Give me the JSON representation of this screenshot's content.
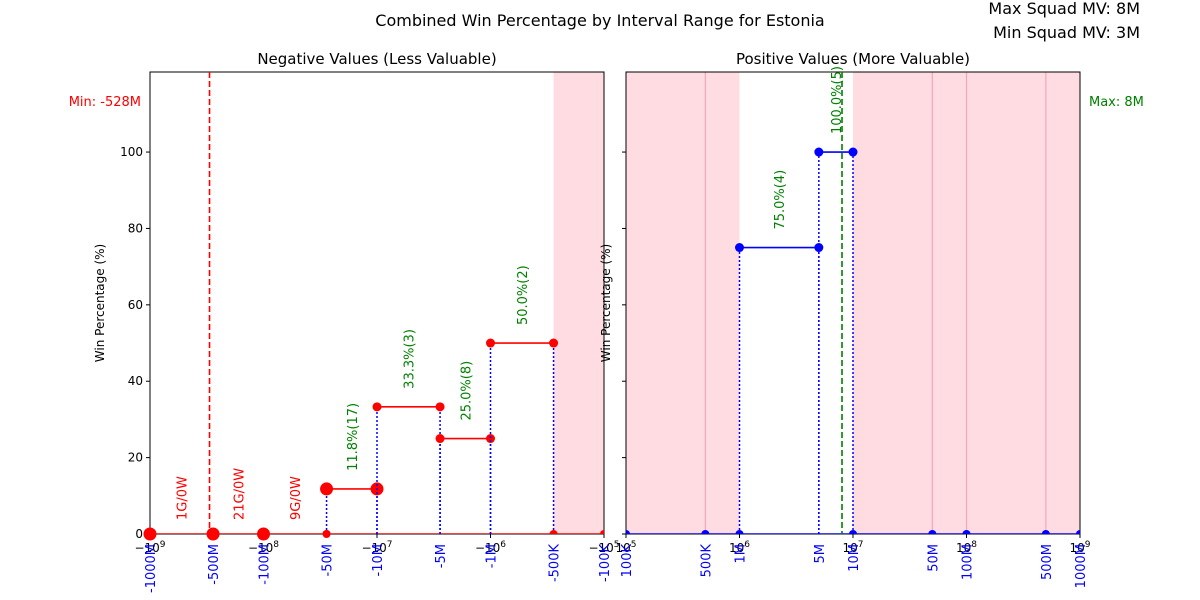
{
  "figure": {
    "title": "Combined Win Percentage by Interval Range for Estonia",
    "max_squad": "Max Squad MV: 8M",
    "min_squad": "Min Squad MV: 3M",
    "min_label": "Min: -528M",
    "max_label": "Max: 8M"
  },
  "colors": {
    "negative": "#ff0000",
    "positive": "#0000ff",
    "annotation": "#008000",
    "shade": "#ffc0cb",
    "shade_line": "#ffc0cb"
  },
  "chart_data": [
    {
      "type": "line",
      "title": "Negative Values (Less Valuable)",
      "ylabel": "Win Percentage (%)",
      "xscale": "symlog",
      "xlim": [
        -1000000000,
        -100000
      ],
      "ylim": [
        0,
        100
      ],
      "yticks": [
        0,
        20,
        40,
        60,
        80,
        100
      ],
      "xticks": [
        {
          "value": -1000000000,
          "label": "−10^9"
        },
        {
          "value": -100000000,
          "label": "−10^8"
        },
        {
          "value": -10000000,
          "label": "−10^7"
        },
        {
          "value": -1000000,
          "label": "−10^6"
        },
        {
          "value": -100000,
          "label": "−10^5"
        }
      ],
      "interval_ticks": [
        {
          "value": -1000000000,
          "label": "-1000M"
        },
        {
          "value": -500000000,
          "label": "-500M"
        },
        {
          "value": -100000000,
          "label": "-100M"
        },
        {
          "value": -50000000,
          "label": "-50M"
        },
        {
          "value": -10000000,
          "label": "-10M"
        },
        {
          "value": -5000000,
          "label": "-5M"
        },
        {
          "value": -1000000,
          "label": "-1M"
        },
        {
          "value": -500000,
          "label": "-500K"
        },
        {
          "value": -100000,
          "label": "-100K"
        }
      ],
      "min_line": -528000000,
      "shaded_ranges": [
        [
          -500000,
          -100000
        ]
      ],
      "segments": [
        {
          "from": -1000000000,
          "to": -500000000,
          "win_pct": 0,
          "label": "1G/0W",
          "label_color": "negative",
          "marker": "large"
        },
        {
          "from": -500000000,
          "to": -100000000,
          "win_pct": 0,
          "label": "21G/0W",
          "label_color": "negative",
          "marker": "large"
        },
        {
          "from": -100000000,
          "to": -50000000,
          "win_pct": 0,
          "label": "9G/0W",
          "label_color": "negative",
          "marker": "large"
        },
        {
          "from": -50000000,
          "to": -10000000,
          "win_pct": 11.8,
          "label": "11.8%(17)",
          "label_color": "annotation",
          "marker": "large"
        },
        {
          "from": -10000000,
          "to": -5000000,
          "win_pct": 33.3,
          "label": "33.3%(3)",
          "label_color": "annotation",
          "marker": "small"
        },
        {
          "from": -5000000,
          "to": -1000000,
          "win_pct": 25.0,
          "label": "25.0%(8)",
          "label_color": "annotation",
          "marker": "small"
        },
        {
          "from": -1000000,
          "to": -500000,
          "win_pct": 50.0,
          "label": "50.0%(2)",
          "label_color": "annotation",
          "marker": "small"
        }
      ],
      "zero_points": [
        -1000000000,
        -500000000,
        -100000000,
        -50000000,
        -500000,
        -100000
      ]
    },
    {
      "type": "line",
      "title": "Positive Values (More Valuable)",
      "ylabel": "Win Percentage (%)",
      "xscale": "log",
      "xlim": [
        100000,
        1000000000
      ],
      "ylim": [
        0,
        100
      ],
      "yticks": [
        0,
        20,
        40,
        60,
        80,
        100
      ],
      "xticks": [
        {
          "value": 100000,
          "label": "10^5"
        },
        {
          "value": 1000000,
          "label": "10^6"
        },
        {
          "value": 10000000,
          "label": "10^7"
        },
        {
          "value": 100000000,
          "label": "10^8"
        },
        {
          "value": 1000000000,
          "label": "10^9"
        }
      ],
      "interval_ticks": [
        {
          "value": 100000,
          "label": "100K"
        },
        {
          "value": 500000,
          "label": "500K"
        },
        {
          "value": 1000000,
          "label": "1M"
        },
        {
          "value": 5000000,
          "label": "5M"
        },
        {
          "value": 10000000,
          "label": "10M"
        },
        {
          "value": 50000000,
          "label": "50M"
        },
        {
          "value": 100000000,
          "label": "100M"
        },
        {
          "value": 500000000,
          "label": "500M"
        },
        {
          "value": 1000000000,
          "label": "1000M"
        }
      ],
      "max_line": 8000000,
      "shaded_ranges": [
        [
          100000,
          1000000
        ],
        [
          10000000,
          1000000000
        ]
      ],
      "segments": [
        {
          "from": 1000000,
          "to": 5000000,
          "win_pct": 75.0,
          "label": "75.0%(4)",
          "label_color": "annotation",
          "marker": "small"
        },
        {
          "from": 5000000,
          "to": 10000000,
          "win_pct": 100.0,
          "label": "100.0%(5)",
          "label_color": "annotation",
          "marker": "small"
        }
      ],
      "zero_points": [
        100000,
        500000,
        1000000,
        10000000,
        50000000,
        100000000,
        500000000,
        1000000000
      ]
    }
  ]
}
